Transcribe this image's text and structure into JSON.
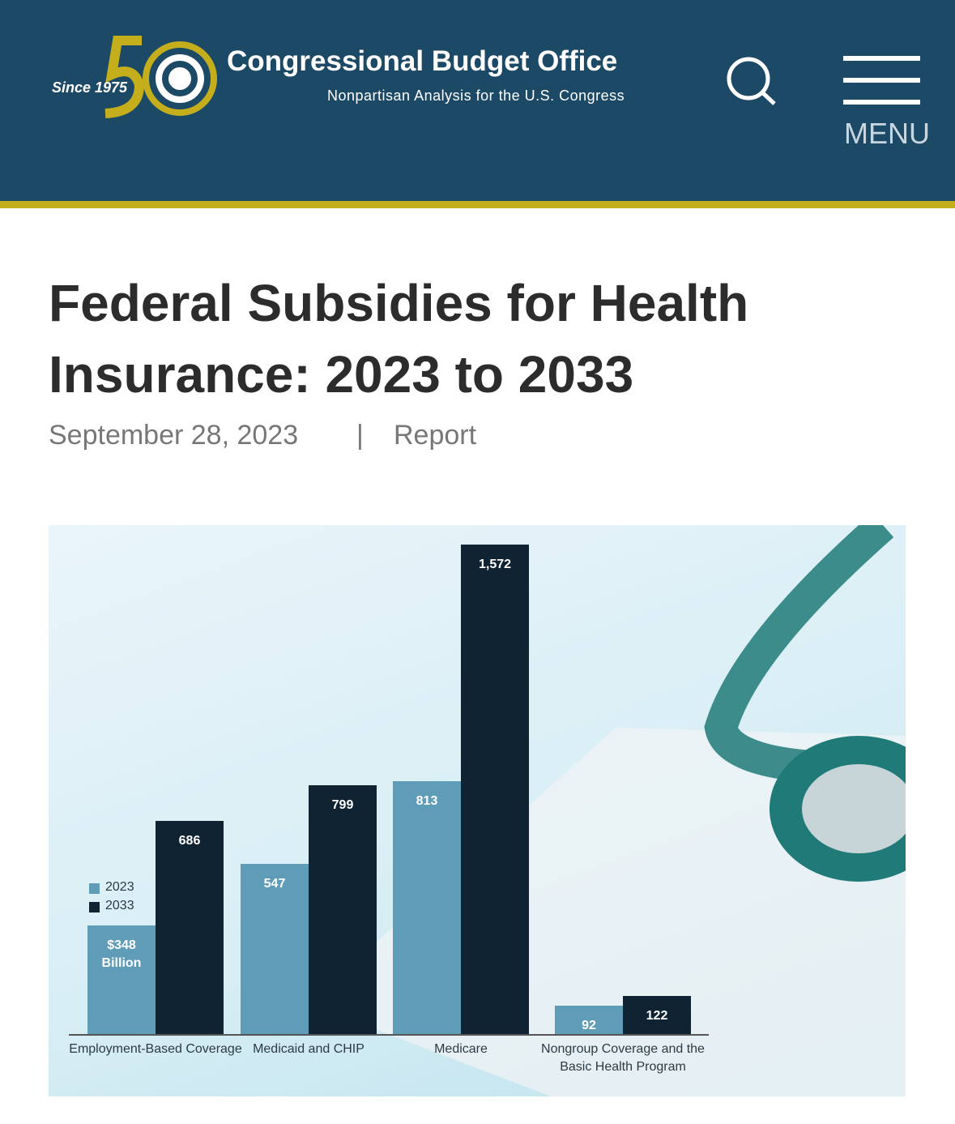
{
  "header": {
    "logo_text": "Since 1975",
    "title": "Congressional Budget Office",
    "subtitle": "Nonpartisan Analysis for the U.S. Congress",
    "menu": "MENU"
  },
  "article": {
    "title": "Federal Subsidies for Health Insurance: 2023 to 2033",
    "date": "September 28, 2023",
    "separator": "|",
    "kind": "Report"
  },
  "chart_data": {
    "type": "bar",
    "categories": [
      "Employment-Based Coverage",
      "Medicaid and CHIP",
      "Medicare",
      "Nongroup Coverage and the Basic Health Program"
    ],
    "series": [
      {
        "name": "2023",
        "color": "#5f9cb8",
        "values": [
          348,
          547,
          813,
          92
        ],
        "value_labels": [
          "$348 Billion",
          "547",
          "813",
          "92"
        ]
      },
      {
        "name": "2033",
        "color": "#0f2333",
        "values": [
          686,
          799,
          1572,
          122
        ],
        "value_labels": [
          "686",
          "799",
          "1,572",
          "122"
        ]
      }
    ],
    "legend": "left"
  }
}
